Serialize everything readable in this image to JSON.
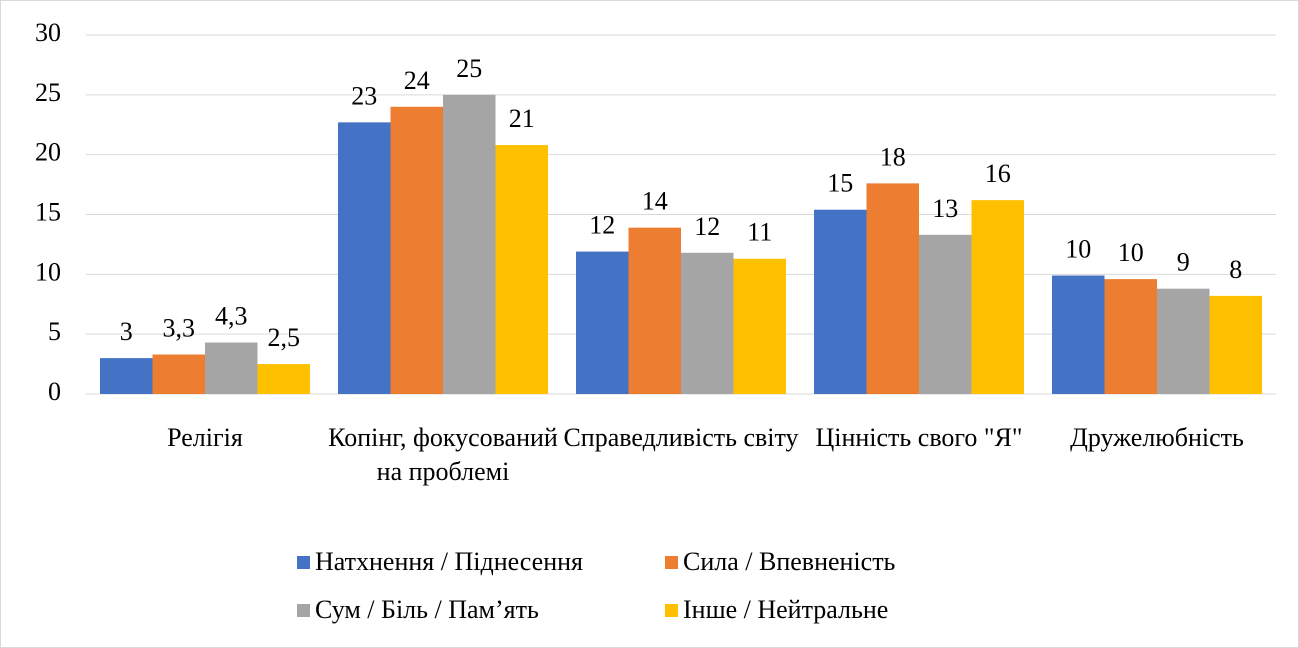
{
  "chart_data": {
    "type": "bar",
    "categories": [
      "Релігія",
      "Копінг, фокусований на проблемі",
      "Справедливість світу",
      "Цінність свого \"Я\"",
      "Дружелюбність"
    ],
    "series": [
      {
        "name": "Натхнення / Піднесення",
        "color": "#4472c4",
        "values": [
          3,
          22.7,
          11.9,
          15.4,
          9.9
        ],
        "value_labels": [
          "3",
          "23",
          "12",
          "15",
          "10"
        ]
      },
      {
        "name": "Сила / Впевненість",
        "color": "#ed7d31",
        "values": [
          3.3,
          24,
          13.9,
          17.6,
          9.6
        ],
        "value_labels": [
          "3,3",
          "24",
          "14",
          "18",
          "10"
        ]
      },
      {
        "name": "Сум / Біль / Пам’ять",
        "color": "#a5a5a5",
        "values": [
          4.3,
          25,
          11.8,
          13.3,
          8.8
        ],
        "value_labels": [
          "4,3",
          "25",
          "12",
          "13",
          "9"
        ]
      },
      {
        "name": "Інше / Нейтральне",
        "color": "#ffc000",
        "values": [
          2.5,
          20.8,
          11.3,
          16.2,
          8.2
        ],
        "value_labels": [
          "2,5",
          "21",
          "11",
          "16",
          "8"
        ]
      }
    ],
    "ylim": [
      0,
      30
    ],
    "yticks": [
      0,
      5,
      10,
      15,
      20,
      25,
      30
    ],
    "grid": true,
    "legend": "bottom"
  }
}
